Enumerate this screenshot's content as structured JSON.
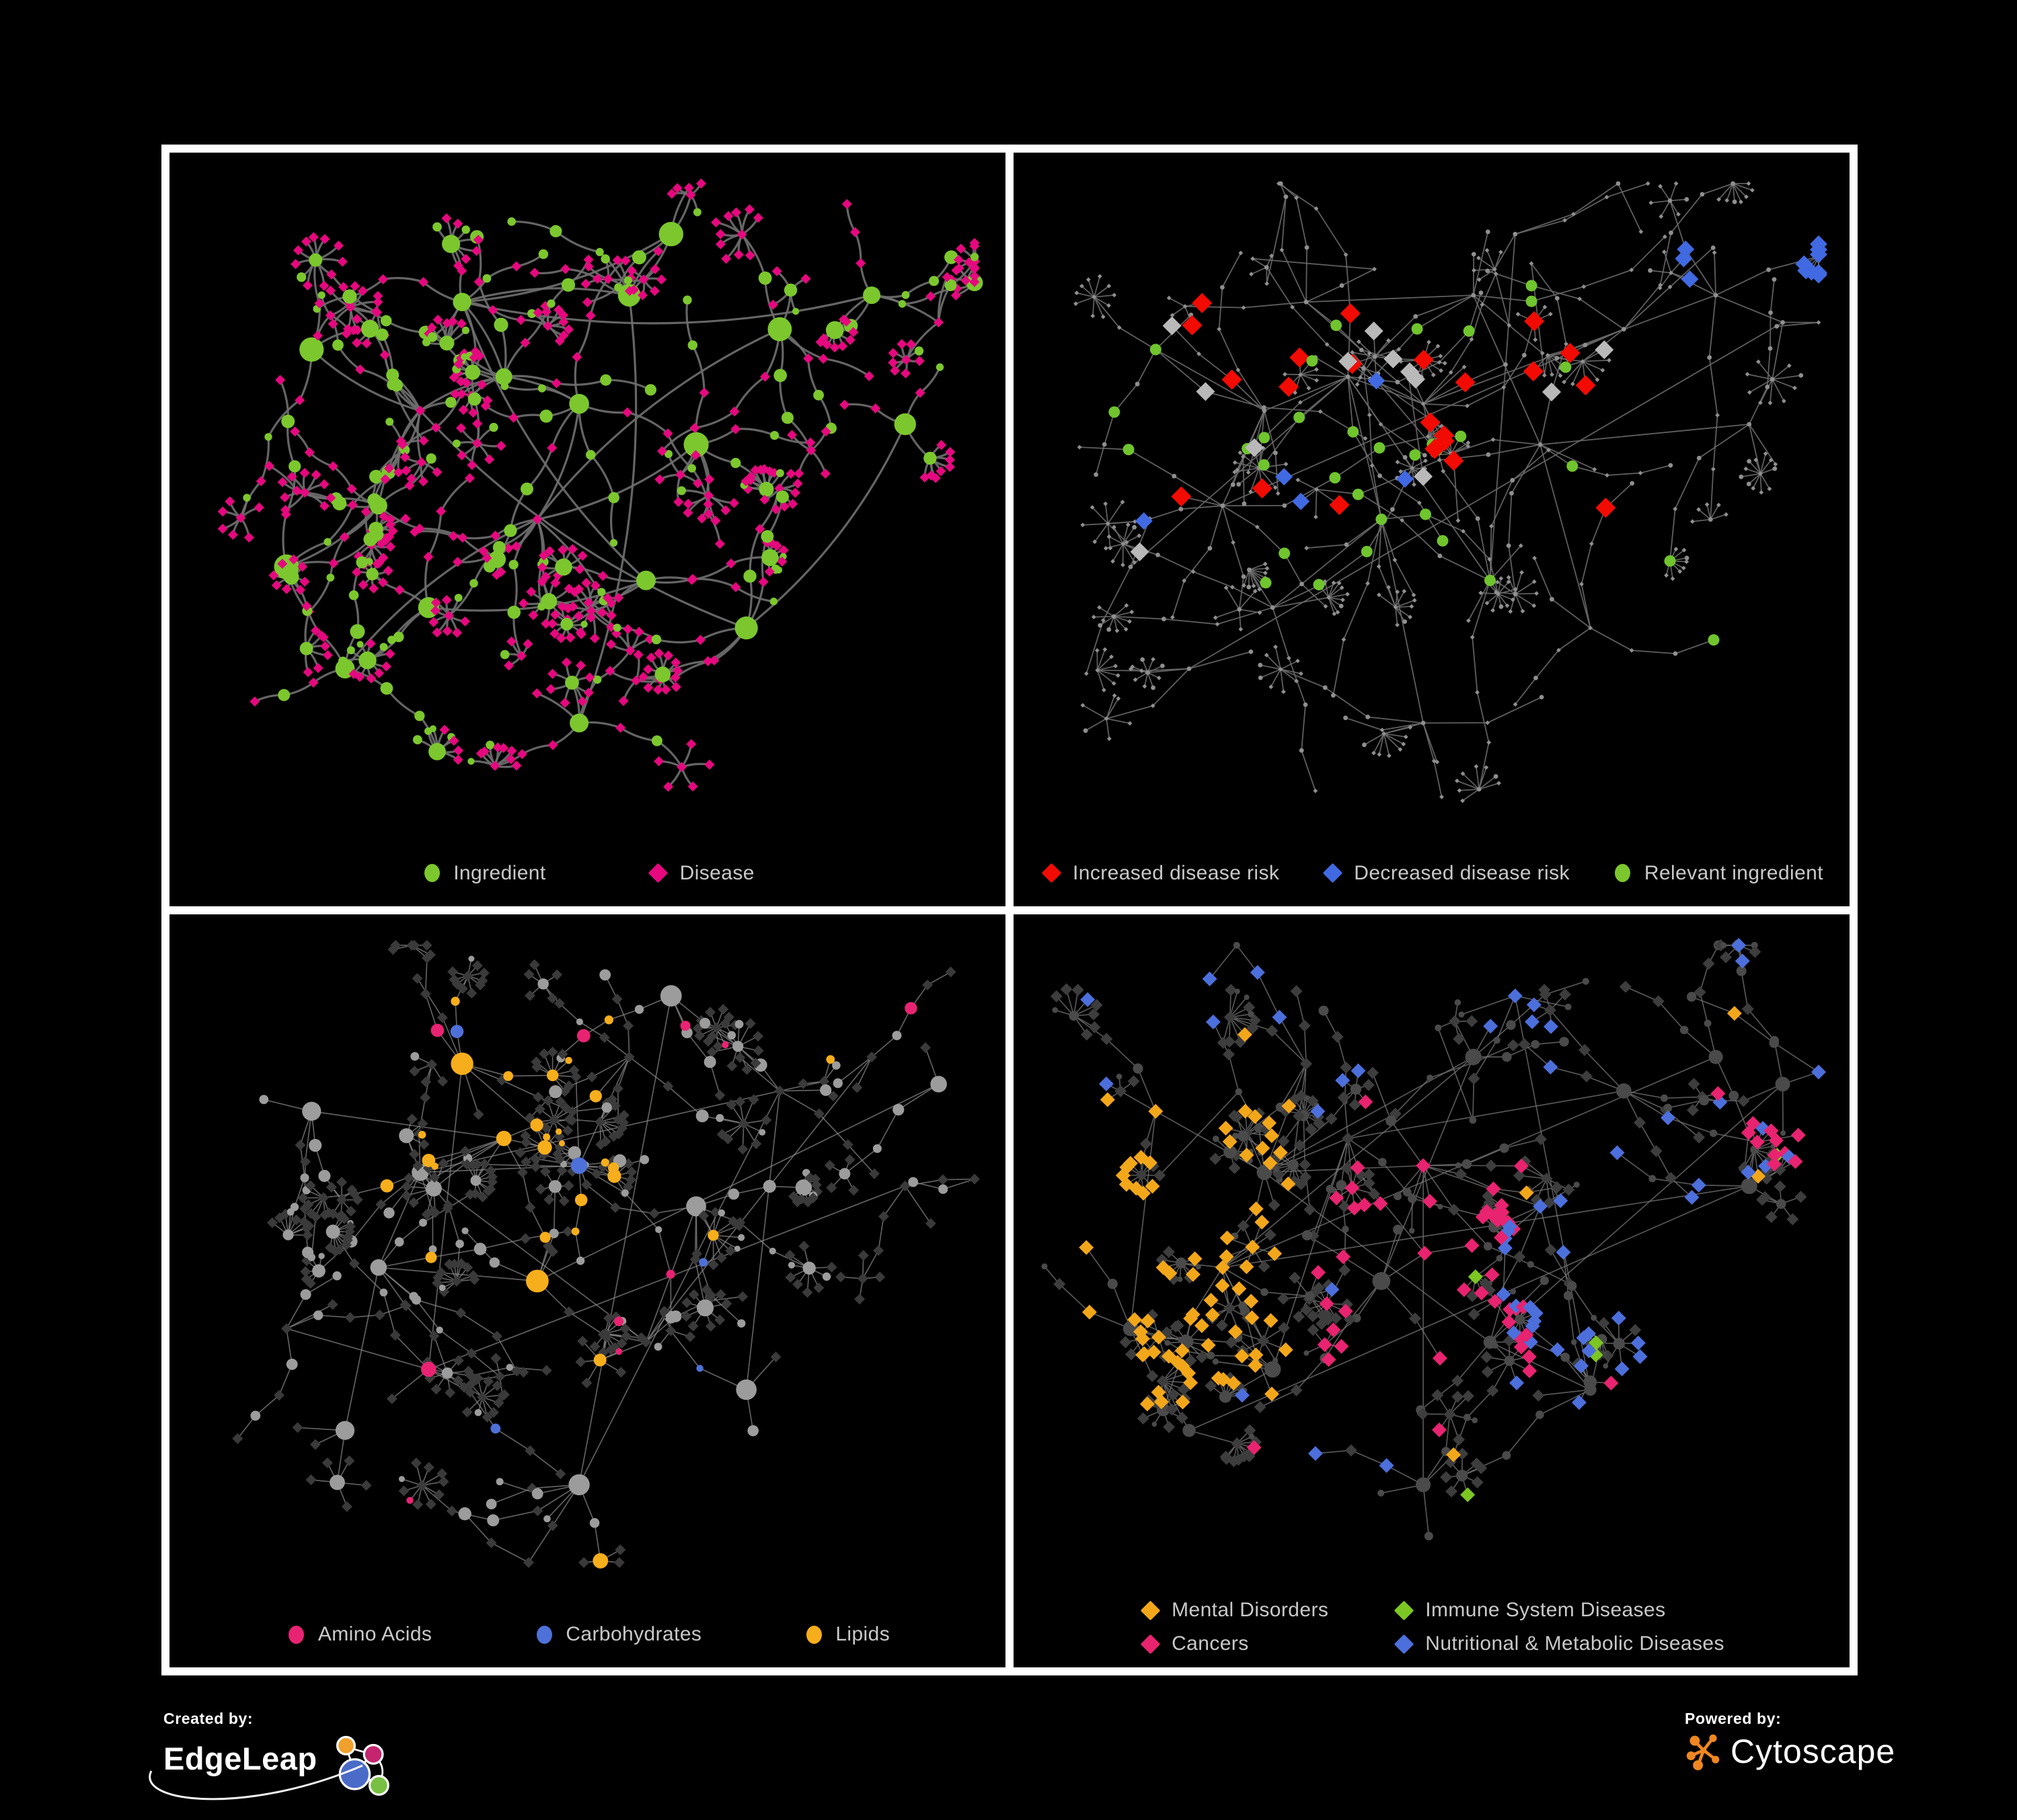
{
  "figure": {
    "background": "#000000",
    "frame_color": "#ffffff",
    "legend_text_color": "#c9c9c9"
  },
  "panels": [
    {
      "name": "ingredient-disease-network",
      "legend_layout": "row",
      "legend_gap": 150,
      "legend": [
        {
          "label": "Ingredient",
          "shape": "circle",
          "color": "#7cc72e"
        },
        {
          "label": "Disease",
          "shape": "diamond",
          "color": "#e5087e"
        }
      ],
      "net": {
        "seed": 7,
        "sprawl": 1.0,
        "fan_p": 0.45,
        "edge_color": "#6e6e6e",
        "edge_width": 3.2,
        "edge_opacity": 0.92,
        "curved": true,
        "base": {
          "d": {
            "color": "#e5087e",
            "size": 7.5
          },
          "i": {
            "color": "#7cc72e",
            "size": 0,
            "scale": 1.1
          }
        },
        "rules": []
      }
    },
    {
      "name": "disease-risk-network",
      "legend_layout": "row",
      "legend_gap": 62,
      "legend": [
        {
          "label": "Increased disease risk",
          "shape": "diamond",
          "color": "#f20b02"
        },
        {
          "label": "Decreased disease risk",
          "shape": "diamond",
          "color": "#4169e1"
        },
        {
          "label": "Relevant ingredient",
          "shape": "circle",
          "color": "#7cc72e"
        }
      ],
      "net": {
        "seed": 11,
        "sprawl": 1.22,
        "fan_p": 0.34,
        "edge_color": "#6a6a6a",
        "edge_width": 1.8,
        "edge_opacity": 0.9,
        "curved": false,
        "base": {
          "d": {
            "color": "#8f8f8f",
            "size": 3.4
          },
          "i": {
            "color": "#8f8f8f",
            "size": 3.4
          }
        },
        "rules": [
          {
            "target": "d",
            "region": [
              0.8,
              0.08,
              0.99,
              0.3
            ],
            "color": "#4169e1",
            "p": 0.45,
            "size": 13
          },
          {
            "target": "d",
            "region": [
              0.12,
              0.22,
              0.4,
              0.62
            ],
            "color": "#4169e1",
            "p": 0.11,
            "size": 13
          },
          {
            "target": "d",
            "region": [
              0.12,
              0.2,
              0.73,
              0.62
            ],
            "color": "#f20b02",
            "p": 0.17,
            "size": 15
          },
          {
            "target": "d",
            "region": [
              0.4,
              0.22,
              0.73,
              0.62
            ],
            "color": "#4169e1",
            "p": 0.03,
            "size": 13
          },
          {
            "target": "d",
            "region": [
              0.12,
              0.2,
              0.73,
              0.62
            ],
            "color": "#b9b9b9",
            "p": 0.055,
            "size": 14
          },
          {
            "target": "d",
            "region": [
              0.5,
              0.72,
              0.8,
              0.94
            ],
            "color": "#f20b02",
            "p": 0.12,
            "size": 15
          },
          {
            "target": "i",
            "region": [
              0.12,
              0.18,
              0.72,
              0.65
            ],
            "color": "#70c42e",
            "p": 0.3,
            "size": 8.5
          },
          {
            "target": "i",
            "region": [
              0.72,
              0.55,
              0.97,
              0.82
            ],
            "color": "#70c42e",
            "p": 0.18,
            "size": 8.5
          }
        ]
      }
    },
    {
      "name": "ingredient-classes-network",
      "legend_layout": "row",
      "legend_gap": 150,
      "legend": [
        {
          "label": "Amino Acids",
          "shape": "circle",
          "color": "#e82372"
        },
        {
          "label": "Carbohydrates",
          "shape": "circle",
          "color": "#4e71d9"
        },
        {
          "label": "Lipids",
          "shape": "circle",
          "color": "#f6ae1c"
        }
      ],
      "net": {
        "seed": 23,
        "sprawl": 1.0,
        "fan_p": 0.45,
        "edge_color": "#8a8a8a",
        "edge_width": 1.7,
        "edge_opacity": 0.7,
        "curved": false,
        "base": {
          "d": {
            "color": "#3a3a3a",
            "size": 8
          },
          "i": {
            "color": "#9c9c9c",
            "size": 0
          }
        },
        "rules": [
          {
            "target": "i",
            "region": [
              0.3,
              0.12,
              0.54,
              0.4
            ],
            "color": "#f6ae1c",
            "p": 0.55,
            "size": 0
          },
          {
            "target": "i",
            "region": [
              0.3,
              0.12,
              0.54,
              0.4
            ],
            "color": "#4e71d9",
            "p": 0.3,
            "size": 0
          },
          {
            "target": "i",
            "region": [
              0.28,
              0.42,
              0.58,
              0.64
            ],
            "color": "#f6ae1c",
            "p": 0.38,
            "size": 0
          },
          {
            "target": "i",
            "region": [
              0.4,
              0.66,
              0.58,
              0.86
            ],
            "color": "#f6ae1c",
            "p": 0.3,
            "size": 0
          },
          {
            "target": "i",
            "region": null,
            "color": "#f6ae1c",
            "p": 0.05,
            "size": 0
          },
          {
            "target": "i",
            "region": null,
            "color": "#e82372",
            "p": 0.07,
            "size": 0
          },
          {
            "target": "i",
            "region": null,
            "color": "#4e71d9",
            "p": 0.02,
            "size": 0
          }
        ]
      }
    },
    {
      "name": "disease-classes-network",
      "legend_layout": "grid",
      "legend_gap": 95,
      "legend": [
        {
          "label": "Mental Disorders",
          "shape": "diamond",
          "color": "#f2a71b"
        },
        {
          "label": "Immune System Diseases",
          "shape": "diamond",
          "color": "#7cc623"
        },
        {
          "label": "Cancers",
          "shape": "diamond",
          "color": "#e8236f"
        },
        {
          "label": "Nutritional & Metabolic Diseases",
          "shape": "diamond",
          "color": "#4c6fdc"
        }
      ],
      "net": {
        "seed": 41,
        "sprawl": 1.08,
        "fan_p": 0.42,
        "edge_color": "#757575",
        "edge_width": 1.7,
        "edge_opacity": 0.75,
        "curved": false,
        "base": {
          "d": {
            "color": "#3d3d3d",
            "size": 9
          },
          "i": {
            "color": "#4a4a4a",
            "size": 0,
            "scale": 0.8
          }
        },
        "rules": [
          {
            "target": "d",
            "region": [
              0.04,
              0.26,
              0.33,
              0.74
            ],
            "color": "#f2a71b",
            "p": 0.62,
            "size": 11
          },
          {
            "target": "d",
            "region": [
              0.36,
              0.36,
              0.62,
              0.7
            ],
            "color": "#e8236f",
            "p": 0.42,
            "size": 11
          },
          {
            "target": "d",
            "region": [
              0.58,
              0.42,
              0.8,
              0.7
            ],
            "color": "#4c6fdc",
            "p": 0.45,
            "size": 11
          },
          {
            "target": "d",
            "region": [
              0.0,
              0.0,
              1.0,
              0.18
            ],
            "color": "#4c6fdc",
            "p": 0.28,
            "size": 11
          },
          {
            "target": "d",
            "region": [
              0.7,
              0.18,
              1.0,
              0.42
            ],
            "color": "#4c6fdc",
            "p": 0.3,
            "size": 11
          },
          {
            "target": "d",
            "region": [
              0.84,
              0.2,
              0.99,
              0.38
            ],
            "color": "#e8236f",
            "p": 0.4,
            "size": 11
          },
          {
            "target": "d",
            "region": null,
            "color": "#7cc623",
            "p": 0.02,
            "size": 11
          },
          {
            "target": "d",
            "region": null,
            "color": "#4c6fdc",
            "p": 0.05,
            "size": 11
          },
          {
            "target": "d",
            "region": null,
            "color": "#f2a71b",
            "p": 0.03,
            "size": 11
          },
          {
            "target": "d",
            "region": null,
            "color": "#e8236f",
            "p": 0.03,
            "size": 11
          }
        ]
      }
    }
  ],
  "footer": {
    "created_by_label": "Created by:",
    "edgeleap_name": "EdgeLeap",
    "powered_by_label": "Powered by:",
    "cytoscape_name": "Cytoscape",
    "edgeleap_colors": {
      "orange": "#f0a02c",
      "magenta": "#c4256e",
      "blue": "#4a6bc8",
      "green": "#77c043"
    },
    "cytoscape_orange": "#ee8722"
  }
}
